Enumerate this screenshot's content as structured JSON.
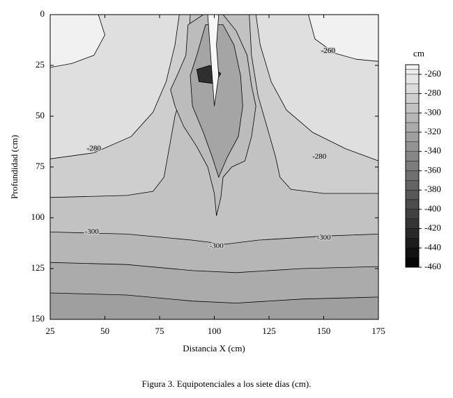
{
  "chart_data": {
    "type": "contour",
    "xlabel": "Distancia X (cm)",
    "ylabel": "Profundidad (cm)",
    "caption": "Figura 3. Equipotenciales a los siete días (cm).",
    "xlim": [
      25,
      175
    ],
    "xticks": [
      25,
      50,
      75,
      100,
      125,
      150,
      175
    ],
    "ylim": [
      150,
      0
    ],
    "yticks": [
      0,
      25,
      50,
      75,
      100,
      125,
      150
    ],
    "colorbar_title": "cm",
    "clim": [
      -460,
      -250
    ],
    "cticks": [
      -260,
      -280,
      -300,
      -320,
      -340,
      -360,
      -380,
      -400,
      -420,
      -440,
      -460
    ],
    "colormap": [
      "#000000",
      "#f7f7f7"
    ],
    "regions": [
      {
        "level": -325,
        "points": [
          [
            25,
            0
          ],
          [
            175,
            0
          ],
          [
            175,
            150
          ],
          [
            25,
            150
          ]
        ]
      },
      {
        "level": -315,
        "points": [
          [
            25,
            0
          ],
          [
            175,
            0
          ],
          [
            175,
            139
          ],
          [
            140,
            140
          ],
          [
            110,
            142
          ],
          [
            90,
            141
          ],
          [
            60,
            138
          ],
          [
            25,
            137
          ]
        ]
      },
      {
        "level": -305,
        "points": [
          [
            25,
            0
          ],
          [
            175,
            0
          ],
          [
            175,
            124
          ],
          [
            140,
            125
          ],
          [
            110,
            127
          ],
          [
            90,
            126
          ],
          [
            60,
            123
          ],
          [
            25,
            122
          ]
        ]
      },
      {
        "level": -295,
        "points": [
          [
            25,
            0
          ],
          [
            175,
            0
          ],
          [
            175,
            108
          ],
          [
            150,
            109
          ],
          [
            120,
            111
          ],
          [
            105,
            113
          ],
          [
            90,
            111
          ],
          [
            60,
            108
          ],
          [
            25,
            107
          ]
        ]
      },
      {
        "level": -285,
        "points": [
          [
            25,
            0
          ],
          [
            89,
            0
          ],
          [
            88,
            20
          ],
          [
            86,
            35
          ],
          [
            82,
            50
          ],
          [
            79,
            68
          ],
          [
            77,
            80
          ],
          [
            72,
            87
          ],
          [
            60,
            89
          ],
          [
            25,
            90
          ]
        ]
      },
      {
        "level": -285,
        "points": [
          [
            116,
            0
          ],
          [
            117,
            20
          ],
          [
            120,
            40
          ],
          [
            124,
            55
          ],
          [
            128,
            70
          ],
          [
            130,
            80
          ],
          [
            135,
            86
          ],
          [
            150,
            88
          ],
          [
            175,
            88
          ],
          [
            175,
            0
          ]
        ]
      },
      {
        "level": -270,
        "points": [
          [
            25,
            0
          ],
          [
            84,
            0
          ],
          [
            82,
            15
          ],
          [
            78,
            33
          ],
          [
            72,
            48
          ],
          [
            62,
            60
          ],
          [
            45,
            68
          ],
          [
            25,
            71
          ]
        ]
      },
      {
        "level": -270,
        "points": [
          [
            119,
            0
          ],
          [
            121,
            15
          ],
          [
            126,
            33
          ],
          [
            133,
            47
          ],
          [
            145,
            58
          ],
          [
            160,
            66
          ],
          [
            175,
            72
          ],
          [
            175,
            0
          ]
        ]
      },
      {
        "level": -255,
        "points": [
          [
            25,
            0
          ],
          [
            47,
            0
          ],
          [
            50,
            10
          ],
          [
            45,
            20
          ],
          [
            35,
            24
          ],
          [
            25,
            26
          ]
        ]
      },
      {
        "level": -255,
        "points": [
          [
            143,
            0
          ],
          [
            146,
            12
          ],
          [
            155,
            19
          ],
          [
            165,
            22
          ],
          [
            175,
            23
          ],
          [
            175,
            0
          ]
        ]
      },
      {
        "level": -300,
        "points": [
          [
            95,
            0
          ],
          [
            88,
            5
          ],
          [
            87,
            20
          ],
          [
            83,
            30
          ],
          [
            80,
            37
          ],
          [
            82,
            45
          ],
          [
            86,
            55
          ],
          [
            92,
            65
          ],
          [
            97,
            75
          ],
          [
            100,
            88
          ],
          [
            101,
            99
          ],
          [
            103,
            90
          ],
          [
            104,
            80
          ],
          [
            108,
            75
          ],
          [
            114,
            72
          ],
          [
            117,
            60
          ],
          [
            119,
            45
          ],
          [
            117,
            35
          ],
          [
            115,
            20
          ],
          [
            110,
            8
          ],
          [
            104,
            0
          ]
        ]
      },
      {
        "level": -320,
        "points": [
          [
            96,
            5
          ],
          [
            92,
            20
          ],
          [
            89,
            30
          ],
          [
            90,
            45
          ],
          [
            95,
            58
          ],
          [
            99,
            70
          ],
          [
            102,
            80
          ],
          [
            106,
            70
          ],
          [
            111,
            60
          ],
          [
            113,
            45
          ],
          [
            112,
            30
          ],
          [
            109,
            15
          ],
          [
            104,
            5
          ]
        ]
      },
      {
        "level": -420,
        "points": [
          [
            92,
            27
          ],
          [
            98,
            25
          ],
          [
            103,
            29
          ],
          [
            100,
            34
          ],
          [
            93,
            33
          ]
        ]
      },
      {
        "level": -250,
        "points": [
          [
            97,
            0
          ],
          [
            102,
            0
          ],
          [
            101,
            15
          ],
          [
            102,
            30
          ],
          [
            100,
            45
          ],
          [
            99,
            30
          ],
          [
            98,
            15
          ]
        ]
      }
    ],
    "contour_labels": [
      {
        "x": 45,
        "y": 66,
        "value": -280
      },
      {
        "x": 148,
        "y": 70,
        "value": -280
      },
      {
        "x": 152,
        "y": 18,
        "value": -260
      },
      {
        "x": 44,
        "y": 107,
        "value": -300
      },
      {
        "x": 101,
        "y": 114,
        "value": -300
      },
      {
        "x": 150,
        "y": 110,
        "value": -300
      }
    ]
  }
}
